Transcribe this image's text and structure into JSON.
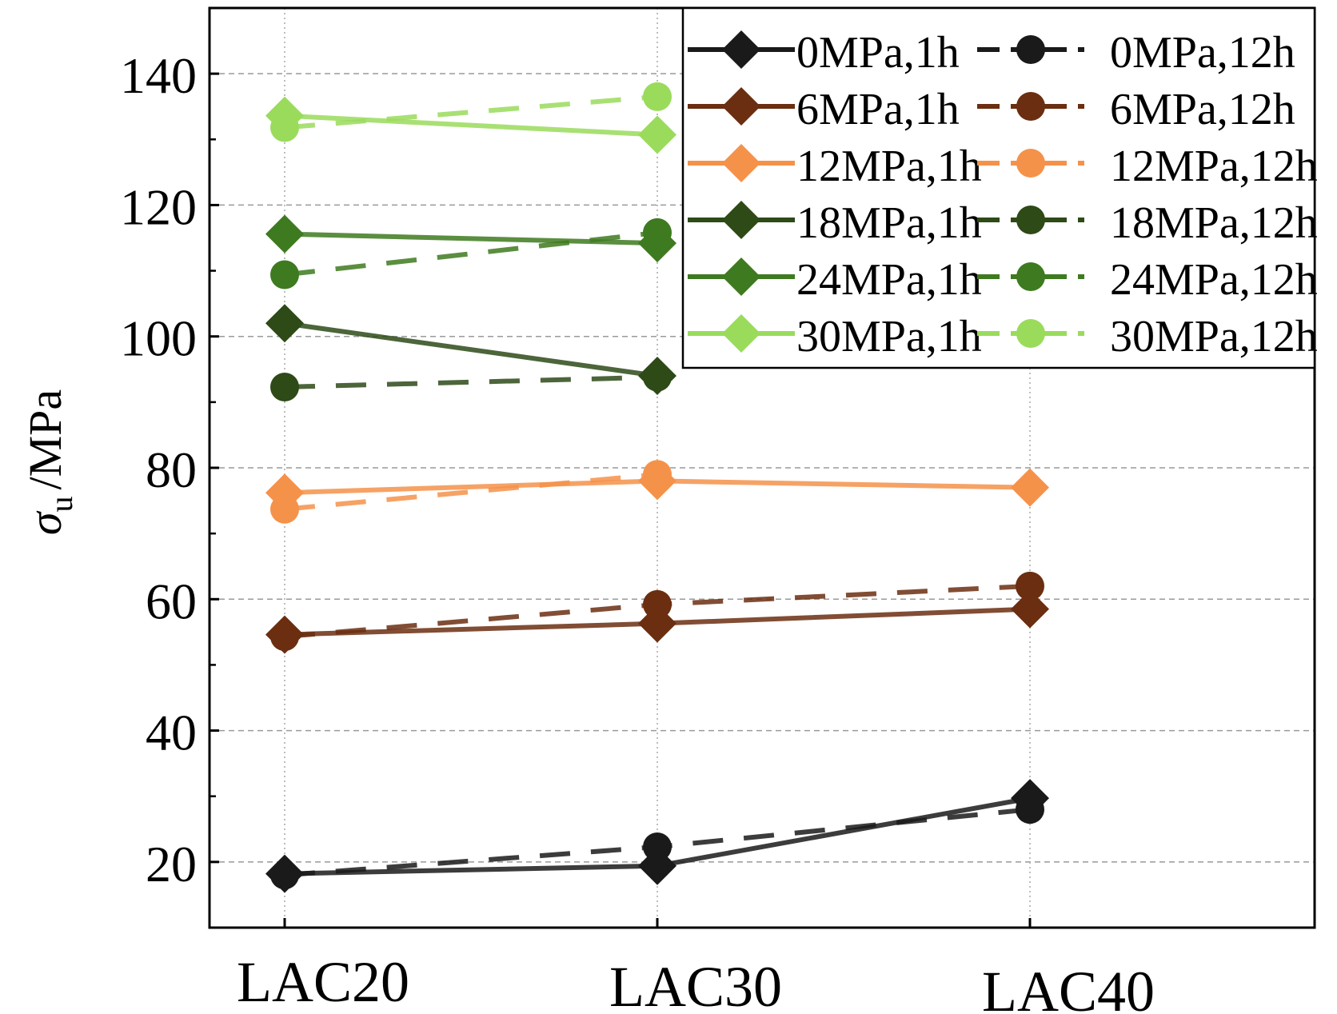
{
  "chart_data": {
    "type": "line",
    "title": "",
    "xlabel": "",
    "ylabel": "σu /MPa",
    "ylabel_symbol": "σ",
    "ylabel_subscript": "u",
    "ylabel_unit": "/MPa",
    "categories": [
      "LAC20",
      "LAC30",
      "LAC40"
    ],
    "ylim": [
      10,
      150
    ],
    "yticks": [
      20,
      40,
      60,
      80,
      100,
      120,
      140
    ],
    "grid": true,
    "legend_position": "top-right",
    "series": [
      {
        "name": "0MPa,1h",
        "color": "#1a1a1a",
        "linestyle": "solid",
        "marker": "diamond",
        "values": [
          18.2,
          19.4,
          29.7
        ]
      },
      {
        "name": "0MPa,12h",
        "color": "#1a1a1a",
        "linestyle": "dashed",
        "marker": "circle",
        "values": [
          18.0,
          22.3,
          28.0
        ]
      },
      {
        "name": "6MPa,1h",
        "color": "#6b2e10",
        "linestyle": "solid",
        "marker": "diamond",
        "values": [
          54.6,
          56.3,
          58.5
        ]
      },
      {
        "name": "6MPa,12h",
        "color": "#6b2e10",
        "linestyle": "dashed",
        "marker": "circle",
        "values": [
          54.3,
          59.2,
          62.0
        ]
      },
      {
        "name": "12MPa,1h",
        "color": "#f5924a",
        "linestyle": "solid",
        "marker": "diamond",
        "values": [
          76.2,
          78.0,
          77.0
        ]
      },
      {
        "name": "12MPa,12h",
        "color": "#f5924a",
        "linestyle": "dashed",
        "marker": "circle",
        "values": [
          73.7,
          79.0,
          null
        ]
      },
      {
        "name": "18MPa,1h",
        "color": "#2d4a17",
        "linestyle": "solid",
        "marker": "diamond",
        "values": [
          102.0,
          94.0,
          null
        ]
      },
      {
        "name": "18MPa,12h",
        "color": "#2d4a17",
        "linestyle": "dashed",
        "marker": "circle",
        "values": [
          92.3,
          93.8,
          null
        ]
      },
      {
        "name": "24MPa,1h",
        "color": "#3e7a1f",
        "linestyle": "solid",
        "marker": "diamond",
        "values": [
          115.6,
          114.2,
          null
        ]
      },
      {
        "name": "24MPa,12h",
        "color": "#3e7a1f",
        "linestyle": "dashed",
        "marker": "circle",
        "values": [
          109.4,
          115.8,
          null
        ]
      },
      {
        "name": "30MPa,1h",
        "color": "#9adb5c",
        "linestyle": "solid",
        "marker": "diamond",
        "values": [
          133.6,
          130.7,
          null
        ]
      },
      {
        "name": "30MPa,12h",
        "color": "#9adb5c",
        "linestyle": "dashed",
        "marker": "circle",
        "values": [
          131.8,
          136.5,
          null
        ]
      }
    ]
  }
}
